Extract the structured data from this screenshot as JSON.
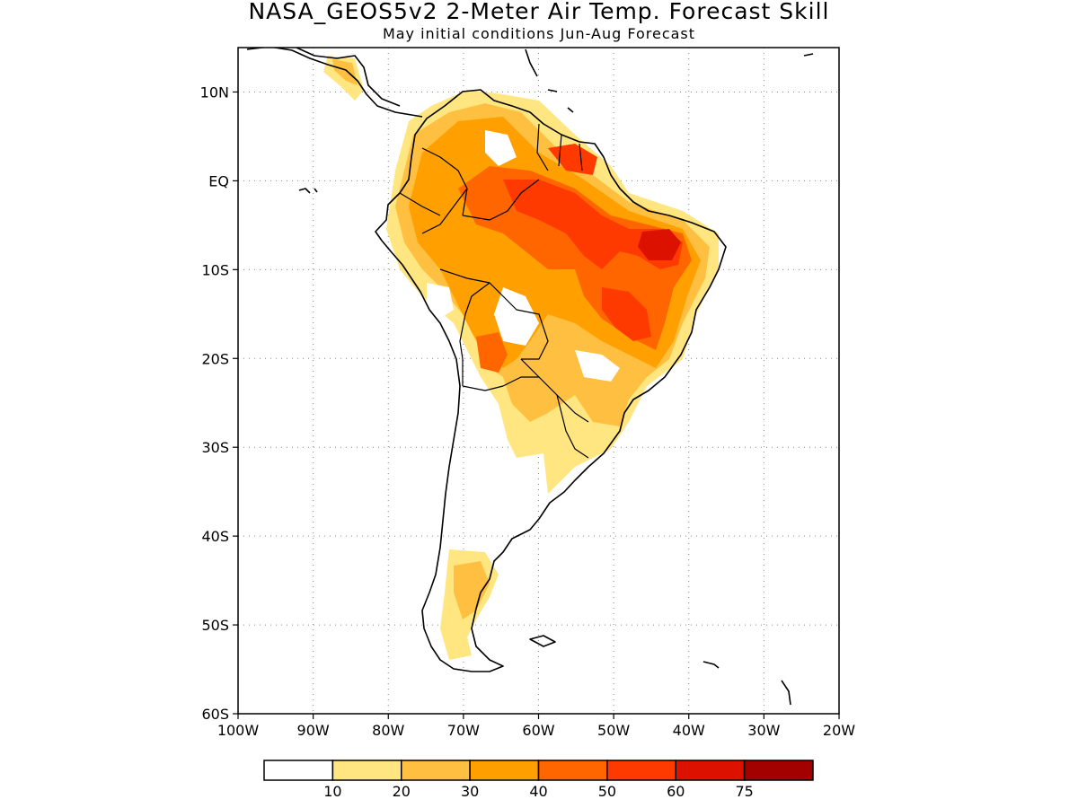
{
  "map": {
    "title": "NASA_GEOS5v2 2-Meter Air Temp. Forecast Skill",
    "subtitle": "May initial conditions  Jun-Aug Forecast",
    "region": "South America",
    "lon_range": [
      -100,
      -20
    ],
    "lat_range": [
      -60,
      15
    ],
    "grid": true,
    "lon_ticks": [
      {
        "value": -100,
        "label": "100W"
      },
      {
        "value": -90,
        "label": "90W"
      },
      {
        "value": -80,
        "label": "80W"
      },
      {
        "value": -70,
        "label": "70W"
      },
      {
        "value": -60,
        "label": "60W"
      },
      {
        "value": -50,
        "label": "50W"
      },
      {
        "value": -40,
        "label": "40W"
      },
      {
        "value": -30,
        "label": "30W"
      },
      {
        "value": -20,
        "label": "20W"
      }
    ],
    "lat_ticks": [
      {
        "value": 10,
        "label": "10N"
      },
      {
        "value": 0,
        "label": "EQ"
      },
      {
        "value": -10,
        "label": "10S"
      },
      {
        "value": -20,
        "label": "20S"
      },
      {
        "value": -30,
        "label": "30S"
      },
      {
        "value": -40,
        "label": "40S"
      },
      {
        "value": -50,
        "label": "50S"
      },
      {
        "value": -60,
        "label": "60S"
      }
    ],
    "colorbar": {
      "bins": [
        {
          "color": "#ffffff",
          "label": "10"
        },
        {
          "color": "#ffe680",
          "label": "20"
        },
        {
          "color": "#ffbf40",
          "label": "30"
        },
        {
          "color": "#ff9f00",
          "label": "40"
        },
        {
          "color": "#ff6600",
          "label": "50"
        },
        {
          "color": "#ff3a00",
          "label": "60"
        },
        {
          "color": "#dd1100",
          "label": "75"
        },
        {
          "color": "#a30000",
          "label": ""
        }
      ]
    }
  }
}
